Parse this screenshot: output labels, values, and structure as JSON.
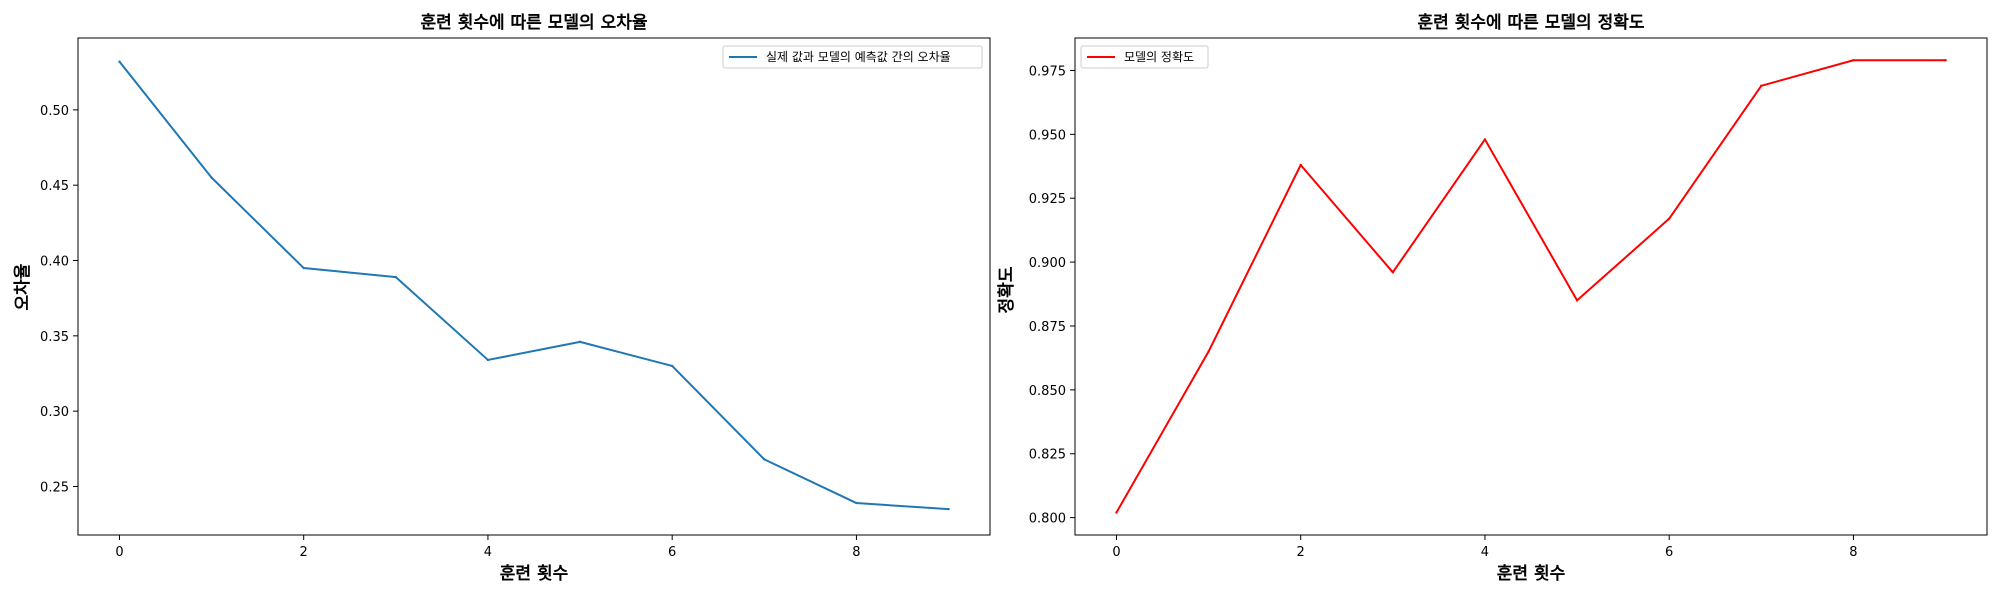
{
  "chart_data": [
    {
      "type": "line",
      "title": "훈련 횟수에 따른 모델의 오차율",
      "xlabel": "훈련 횟수",
      "ylabel": "오차율",
      "x": [
        0,
        1,
        2,
        3,
        4,
        5,
        6,
        7,
        8,
        9
      ],
      "xlim": [
        -0.45,
        9.45
      ],
      "ylim": [
        0.2178,
        0.5477
      ],
      "xticks": [
        0,
        2,
        4,
        6,
        8
      ],
      "xtick_labels": [
        "0",
        "2",
        "4",
        "6",
        "8"
      ],
      "yticks": [
        0.25,
        0.3,
        0.35,
        0.4,
        0.45,
        0.5
      ],
      "ytick_labels": [
        "0.25",
        "0.30",
        "0.35",
        "0.40",
        "0.45",
        "0.50"
      ],
      "grid": false,
      "legend_position": "top-right",
      "series": [
        {
          "name": "실제 값과 모델의 예측값 간의 오차율",
          "color": "#1f77b4",
          "values": [
            0.532,
            0.455,
            0.395,
            0.389,
            0.334,
            0.346,
            0.33,
            0.268,
            0.239,
            0.235
          ]
        }
      ]
    },
    {
      "type": "line",
      "title": "훈련 횟수에 따른 모델의 정확도",
      "xlabel": "훈련 횟수",
      "ylabel": "정확도",
      "x": [
        0,
        1,
        2,
        3,
        4,
        5,
        6,
        7,
        8,
        9
      ],
      "xlim": [
        -0.45,
        9.45
      ],
      "ylim": [
        0.7932,
        0.9877
      ],
      "xticks": [
        0,
        2,
        4,
        6,
        8
      ],
      "xtick_labels": [
        "0",
        "2",
        "4",
        "6",
        "8"
      ],
      "yticks": [
        0.8,
        0.825,
        0.85,
        0.875,
        0.9,
        0.925,
        0.95,
        0.975
      ],
      "ytick_labels": [
        "0.800",
        "0.825",
        "0.850",
        "0.875",
        "0.900",
        "0.925",
        "0.950",
        "0.975"
      ],
      "grid": false,
      "legend_position": "top-left",
      "series": [
        {
          "name": "모델의 정확도",
          "color": "#ff0000",
          "values": [
            0.802,
            0.865,
            0.938,
            0.896,
            0.948,
            0.885,
            0.917,
            0.969,
            0.979,
            0.979
          ]
        }
      ]
    }
  ]
}
